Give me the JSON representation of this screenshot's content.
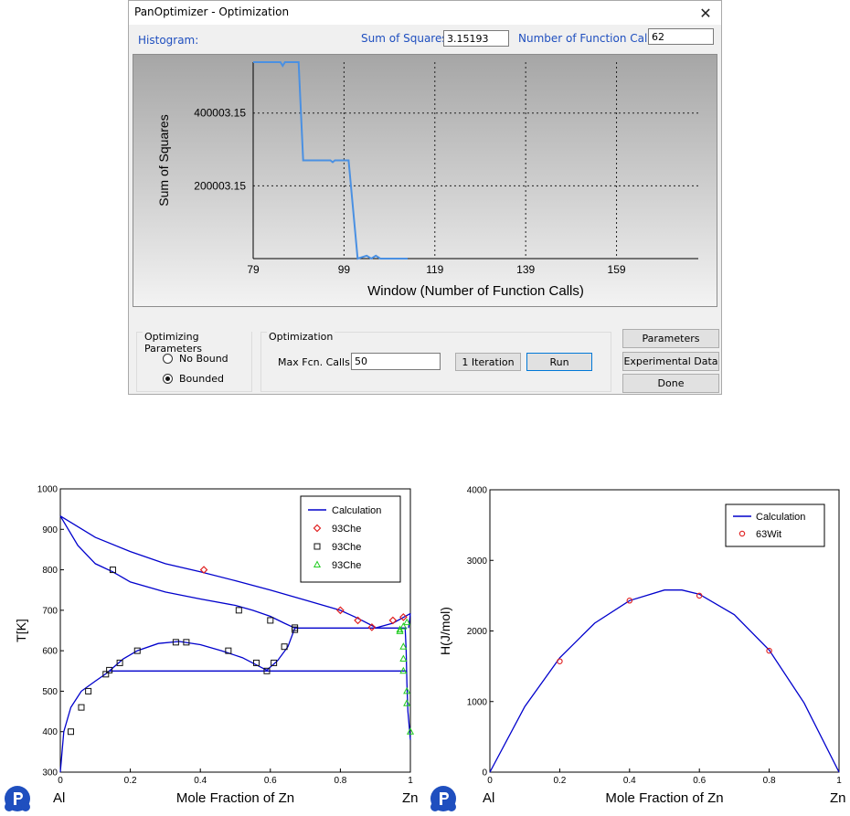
{
  "window": {
    "title": "PanOptimizer - Optimization",
    "close_glyph": "✕",
    "histogram_label": "Histogram:",
    "sum_of_squares_label": "Sum of Squares:",
    "sum_of_squares_value": "3.15193",
    "function_calls_label": "Number of Function Calls:",
    "function_calls_value": "62"
  },
  "histogram_chart": {
    "type": "line",
    "ylabel": "Sum of Squares",
    "xlabel": "Window (Number of Function Calls)",
    "x_ticks": [
      "79",
      "99",
      "119",
      "139",
      "159"
    ],
    "y_ticks": [
      "400003.15",
      "200003.15"
    ],
    "xlim": [
      79,
      177
    ],
    "ylim": [
      0,
      540000
    ],
    "line_color": "#4a90e2",
    "points": [
      [
        79,
        540000
      ],
      [
        85,
        540000
      ],
      [
        85.5,
        530000
      ],
      [
        86,
        540000
      ],
      [
        89,
        540000
      ],
      [
        90,
        270000
      ],
      [
        96,
        270000
      ],
      [
        96.5,
        265000
      ],
      [
        97,
        270000
      ],
      [
        100,
        270000
      ],
      [
        102,
        0
      ],
      [
        104,
        8000
      ],
      [
        105,
        0
      ],
      [
        106,
        8000
      ],
      [
        107,
        0
      ],
      [
        113,
        0
      ]
    ]
  },
  "params_group": {
    "title": "Optimizing Parameters",
    "options": [
      {
        "label": "No Bound",
        "selected": false
      },
      {
        "label": "Bounded",
        "selected": true
      }
    ]
  },
  "optimization_group": {
    "title": "Optimization",
    "max_fcn_label": "Max Fcn. Calls:",
    "max_fcn_value": "50",
    "iteration_button": "1 Iteration",
    "run_button": "Run"
  },
  "side_buttons": {
    "parameters": "Parameters",
    "experimental_data": "Experimental Data",
    "done": "Done"
  },
  "chart_data": [
    {
      "type": "scatter",
      "title": "",
      "ylabel": "T[K]",
      "xlabel": "Mole Fraction of Zn",
      "x_left_label": "Al",
      "x_right_label": "Zn",
      "xlim": [
        0,
        1
      ],
      "ylim": [
        300,
        1000
      ],
      "x_ticks": [
        "0",
        "0.2",
        "0.4",
        "0.6",
        "0.8",
        "1"
      ],
      "y_ticks": [
        "300",
        "400",
        "500",
        "600",
        "700",
        "800",
        "900",
        "1000"
      ],
      "legend_position": "top-right",
      "legend": [
        "Calculation",
        "93Che",
        "93Che",
        "93Che"
      ],
      "colors": {
        "calc": "#0000cc",
        "red": "#e02020",
        "black": "#111111",
        "green": "#22cc22"
      },
      "calc_curves": [
        [
          [
            0,
            933
          ],
          [
            0.1,
            880
          ],
          [
            0.2,
            845
          ],
          [
            0.3,
            815
          ],
          [
            0.4,
            795
          ],
          [
            0.5,
            773
          ],
          [
            0.6,
            750
          ],
          [
            0.7,
            725
          ],
          [
            0.8,
            700
          ],
          [
            0.85,
            680
          ],
          [
            0.9,
            658
          ]
        ],
        [
          [
            0,
            933
          ],
          [
            0.05,
            860
          ],
          [
            0.1,
            815
          ],
          [
            0.15,
            795
          ],
          [
            0.2,
            770
          ],
          [
            0.3,
            745
          ],
          [
            0.4,
            728
          ],
          [
            0.5,
            712
          ],
          [
            0.55,
            700
          ],
          [
            0.6,
            685
          ],
          [
            0.64,
            668
          ],
          [
            0.67,
            656
          ]
        ],
        [
          [
            0.9,
            656
          ],
          [
            0.95,
            668
          ],
          [
            1,
            692
          ]
        ],
        [
          [
            0.67,
            656
          ],
          [
            0.99,
            656
          ]
        ],
        [
          [
            0.995,
            656
          ],
          [
            1,
            692
          ]
        ],
        [
          [
            0,
            300
          ],
          [
            0.01,
            400
          ],
          [
            0.03,
            460
          ],
          [
            0.06,
            500
          ],
          [
            0.1,
            525
          ],
          [
            0.13,
            543
          ],
          [
            0.14,
            550
          ],
          [
            0.18,
            580
          ],
          [
            0.22,
            600
          ],
          [
            0.28,
            618
          ],
          [
            0.34,
            623
          ],
          [
            0.4,
            615
          ],
          [
            0.46,
            600
          ],
          [
            0.52,
            583
          ],
          [
            0.58,
            556
          ],
          [
            0.59,
            552
          ],
          [
            0.62,
            575
          ],
          [
            0.65,
            610
          ],
          [
            0.67,
            656
          ]
        ],
        [
          [
            0.14,
            550
          ],
          [
            0.99,
            550
          ]
        ],
        [
          [
            0.985,
            656
          ],
          [
            0.988,
            600
          ],
          [
            0.99,
            520
          ],
          [
            0.993,
            450
          ],
          [
            1,
            380
          ]
        ]
      ],
      "red_points": [
        [
          0.41,
          800
        ],
        [
          0.8,
          700
        ],
        [
          0.85,
          675
        ],
        [
          0.89,
          658
        ],
        [
          0.95,
          675
        ],
        [
          0.98,
          683
        ]
      ],
      "black_points": [
        [
          0.03,
          400
        ],
        [
          0.06,
          460
        ],
        [
          0.08,
          500
        ],
        [
          0.13,
          542
        ],
        [
          0.14,
          552
        ],
        [
          0.15,
          800
        ],
        [
          0.17,
          570
        ],
        [
          0.22,
          600
        ],
        [
          0.33,
          621
        ],
        [
          0.36,
          621
        ],
        [
          0.48,
          600
        ],
        [
          0.51,
          700
        ],
        [
          0.56,
          570
        ],
        [
          0.59,
          550
        ],
        [
          0.6,
          675
        ],
        [
          0.61,
          570
        ],
        [
          0.64,
          610
        ],
        [
          0.67,
          652
        ],
        [
          0.67,
          657
        ]
      ],
      "green_points": [
        [
          0.97,
          652
        ],
        [
          0.97,
          648
        ],
        [
          0.98,
          660
        ],
        [
          0.99,
          670
        ],
        [
          0.98,
          610
        ],
        [
          0.98,
          580
        ],
        [
          0.98,
          550
        ],
        [
          0.99,
          500
        ],
        [
          0.99,
          470
        ],
        [
          1,
          400
        ]
      ]
    },
    {
      "type": "scatter",
      "title": "",
      "ylabel": "H(J/mol)",
      "xlabel": "Mole Fraction of Zn",
      "x_left_label": "Al",
      "x_right_label": "Zn",
      "xlim": [
        0,
        1
      ],
      "ylim": [
        0,
        4000
      ],
      "x_ticks": [
        "0",
        "0.2",
        "0.4",
        "0.6",
        "0.8",
        "1"
      ],
      "y_ticks": [
        "0",
        "1000",
        "2000",
        "3000",
        "4000"
      ],
      "legend_position": "top-right",
      "legend": [
        "Calculation",
        "63Wit"
      ],
      "colors": {
        "calc": "#0000cc",
        "red": "#e02020"
      },
      "calc_curve": [
        [
          0,
          0
        ],
        [
          0.1,
          930
        ],
        [
          0.2,
          1620
        ],
        [
          0.3,
          2110
        ],
        [
          0.4,
          2430
        ],
        [
          0.5,
          2580
        ],
        [
          0.55,
          2580
        ],
        [
          0.6,
          2520
        ],
        [
          0.7,
          2230
        ],
        [
          0.8,
          1730
        ],
        [
          0.9,
          980
        ],
        [
          1,
          0
        ]
      ],
      "points": [
        [
          0.2,
          1570
        ],
        [
          0.4,
          2430
        ],
        [
          0.6,
          2500
        ],
        [
          0.8,
          1720
        ]
      ]
    }
  ]
}
